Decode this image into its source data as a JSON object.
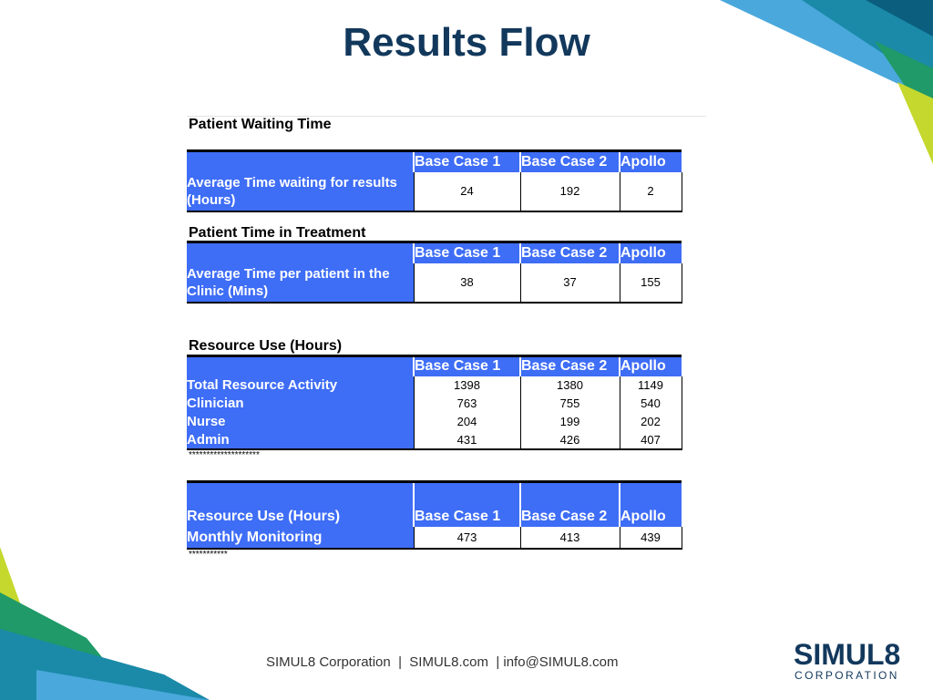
{
  "slide": {
    "title": "Results Flow",
    "colors": {
      "title": "#12385c",
      "table_blue": "#3e6df6",
      "deco_teal": "#1f8f98",
      "deco_dark_blue": "#0c6e9a",
      "deco_light_blue": "#4aa8dc",
      "deco_green": "#1f9a68",
      "deco_lime": "#c5d82d"
    }
  },
  "patient_waiting": {
    "heading": "Patient Waiting Time",
    "columns": [
      "Base Case 1",
      "Base Case 2",
      "Apollo"
    ],
    "row_label": "Average Time waiting for results (Hours)",
    "values": [
      "24",
      "192",
      "2"
    ]
  },
  "patient_treatment": {
    "heading": "Patient Time in Treatment",
    "columns": [
      "Base Case 1",
      "Base Case 2",
      "Apollo"
    ],
    "row_label": "Average Time per patient in the Clinic (Mins)",
    "values": [
      "38",
      "37",
      "155"
    ]
  },
  "resource_use": {
    "heading": "Resource Use (Hours)",
    "columns": [
      "Base Case 1",
      "Base Case 2",
      "Apollo"
    ],
    "rows": [
      {
        "label": "Total Resource Activity",
        "values": [
          "1398",
          "1380",
          "1149"
        ]
      },
      {
        "label": "Clinician",
        "values": [
          "763",
          "755",
          "540"
        ]
      },
      {
        "label": "Nurse",
        "values": [
          "204",
          "199",
          "202"
        ]
      },
      {
        "label": "Admin",
        "values": [
          "431",
          "426",
          "407"
        ]
      }
    ],
    "stars": "********************"
  },
  "monitoring": {
    "header_label": "Resource Use (Hours)",
    "columns": [
      "Base Case 1",
      "Base Case 2",
      "Apollo"
    ],
    "row_label": "Monthly Monitoring",
    "values": [
      "473",
      "413",
      "439"
    ],
    "stars": "***********"
  },
  "footer": {
    "text": "SIMUL8 Corporation  |  SIMUL8.com  | info@SIMUL8.com"
  },
  "logo": {
    "main": "SIMUL8",
    "sub": "CORPORATION"
  }
}
